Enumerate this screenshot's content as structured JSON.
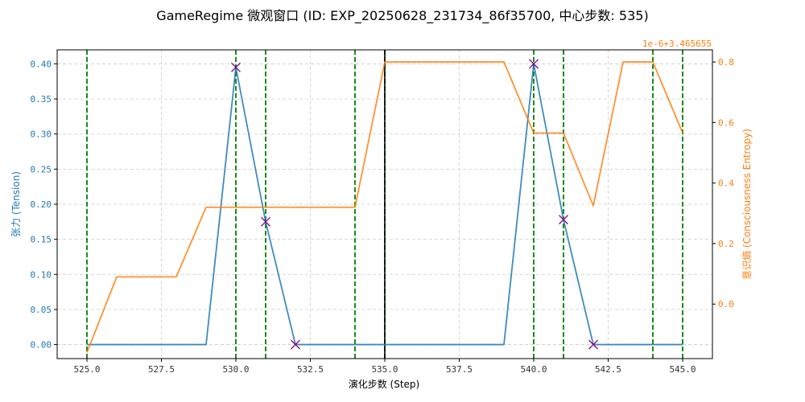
{
  "chart_data": {
    "type": "line",
    "title": "GameRegime 微观窗口 (ID: EXP_20250628_231734_86f35700, 中心步数: 535)",
    "xlabel": "演化步数 (Step)",
    "ylabel_left": "张力 (Tension)",
    "ylabel_right": "意识熵 (Consciousness Entropy)",
    "right_offset_text": "1e-6+3.465655",
    "xlim": [
      524.0,
      546.0
    ],
    "ylim_left": [
      -0.02,
      0.42
    ],
    "ylim_right": [
      -0.18,
      0.84
    ],
    "x_ticks": [
      525.0,
      527.5,
      530.0,
      532.5,
      535.0,
      537.5,
      540.0,
      542.5,
      545.0
    ],
    "x_tick_labels": [
      "525.0",
      "527.5",
      "530.0",
      "532.5",
      "535.0",
      "537.5",
      "540.0",
      "542.5",
      "545.0"
    ],
    "y_left_ticks": [
      0.0,
      0.05,
      0.1,
      0.15,
      0.2,
      0.25,
      0.3,
      0.35,
      0.4
    ],
    "y_left_tick_labels": [
      "0.00",
      "0.05",
      "0.10",
      "0.15",
      "0.20",
      "0.25",
      "0.30",
      "0.35",
      "0.40"
    ],
    "y_right_ticks": [
      0.0,
      0.2,
      0.4,
      0.6,
      0.8
    ],
    "y_right_tick_labels": [
      "0.0",
      "0.2",
      "0.4",
      "0.6",
      "0.8"
    ],
    "grid": true,
    "x": [
      525,
      526,
      527,
      528,
      529,
      530,
      531,
      532,
      533,
      534,
      535,
      536,
      537,
      538,
      539,
      540,
      541,
      542,
      543,
      544,
      545
    ],
    "series": [
      {
        "axis": "left",
        "color": "#1f77b4",
        "values": [
          0,
          0,
          0,
          0,
          0,
          0.395,
          0.175,
          0,
          0,
          0,
          0,
          0,
          0,
          0,
          0,
          0.4,
          0.178,
          0,
          0,
          0,
          0
        ]
      },
      {
        "axis": "right",
        "color": "#ff7f0e",
        "values": [
          -0.16,
          0.09,
          0.09,
          0.09,
          0.32,
          0.32,
          0.32,
          0.32,
          0.32,
          0.32,
          0.8,
          0.8,
          0.8,
          0.8,
          0.8,
          0.565,
          0.565,
          0.325,
          0.8,
          0.8,
          0.565
        ]
      }
    ],
    "markers": {
      "color": "#800080",
      "symbol": "x",
      "points": [
        [
          530,
          0.395
        ],
        [
          531,
          0.175
        ],
        [
          532,
          0
        ],
        [
          540,
          0.4
        ],
        [
          541,
          0.178
        ],
        [
          542,
          0
        ]
      ]
    },
    "vlines": {
      "green": [
        525,
        530,
        531,
        534,
        535,
        540,
        541,
        544,
        545
      ],
      "green_color": "#008000",
      "center": 535,
      "center_color": "#000000"
    }
  }
}
